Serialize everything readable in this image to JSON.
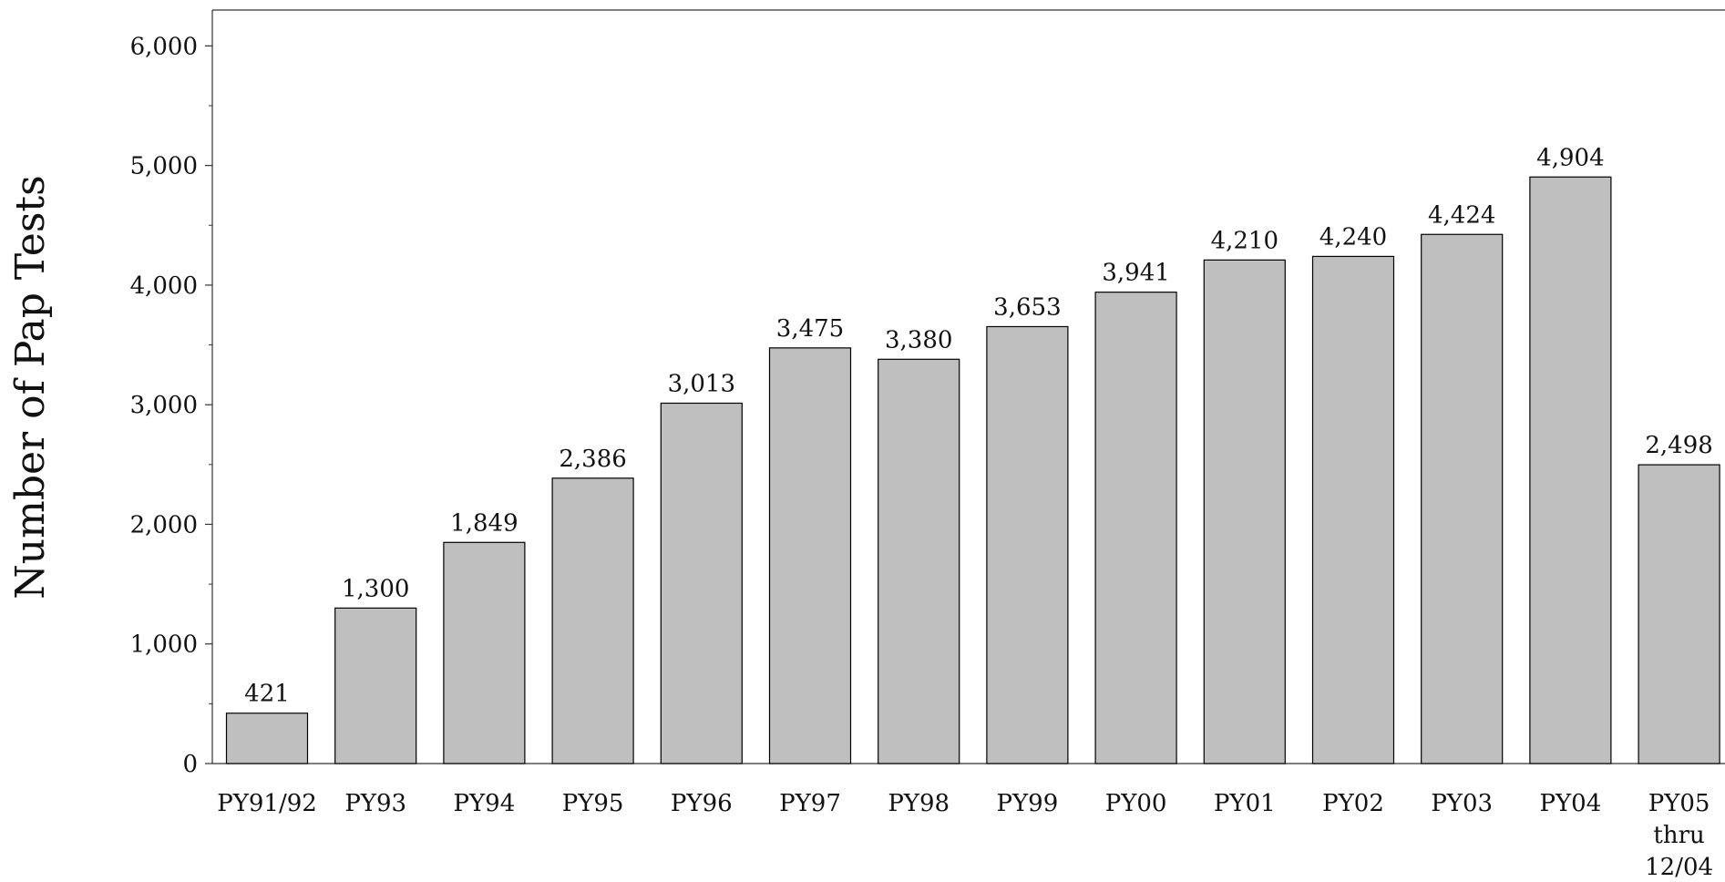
{
  "chart_data": {
    "type": "bar",
    "title": "",
    "xlabel": "",
    "ylabel": "Number of Pap Tests",
    "ylim": [
      0,
      6300
    ],
    "yticks": [
      0,
      1000,
      2000,
      3000,
      4000,
      5000,
      6000
    ],
    "ytick_labels": [
      "0",
      "1,000",
      "2,000",
      "3,000",
      "4,000",
      "5,000",
      "6,000"
    ],
    "grid": false,
    "legend": "none",
    "bar_color": "#bfbfbf",
    "bar_edge_color": "#000000",
    "categories": [
      [
        "PY91/92"
      ],
      [
        "PY93"
      ],
      [
        "PY94"
      ],
      [
        "PY95"
      ],
      [
        "PY96"
      ],
      [
        "PY97"
      ],
      [
        "PY98"
      ],
      [
        "PY99"
      ],
      [
        "PY00"
      ],
      [
        "PY01"
      ],
      [
        "PY02"
      ],
      [
        "PY03"
      ],
      [
        "PY04"
      ],
      [
        "PY05",
        "thru",
        "12/04"
      ]
    ],
    "values": [
      421,
      1300,
      1849,
      2386,
      3013,
      3475,
      3380,
      3653,
      3941,
      4210,
      4240,
      4424,
      4904,
      2498
    ],
    "data_labels": [
      "421",
      "1,300",
      "1,849",
      "2,386",
      "3,013",
      "3,475",
      "3,380",
      "3,653",
      "3,941",
      "4,210",
      "4,240",
      "4,424",
      "4,904",
      "2,498"
    ]
  }
}
